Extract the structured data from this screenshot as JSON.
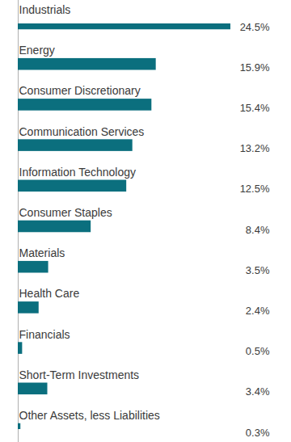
{
  "chart_data": {
    "type": "bar",
    "orientation": "horizontal",
    "categories": [
      "Industrials",
      "Energy",
      "Consumer Discretionary",
      "Communication Services",
      "Information Technology",
      "Consumer Staples",
      "Materials",
      "Health Care",
      "Financials",
      "Short-Term Investments",
      "Other Assets, less Liabilities"
    ],
    "values": [
      24.5,
      15.9,
      15.4,
      13.2,
      12.5,
      8.4,
      3.5,
      2.4,
      0.5,
      3.4,
      0.3
    ],
    "value_labels": [
      "24.5%",
      "15.9%",
      "15.4%",
      "13.2%",
      "12.5%",
      "8.4%",
      "3.5%",
      "2.4%",
      "0.5%",
      "3.4%",
      "0.3%"
    ],
    "data_labels": true,
    "tick_labels": false,
    "grid": false,
    "color": "#0b6f7e"
  }
}
